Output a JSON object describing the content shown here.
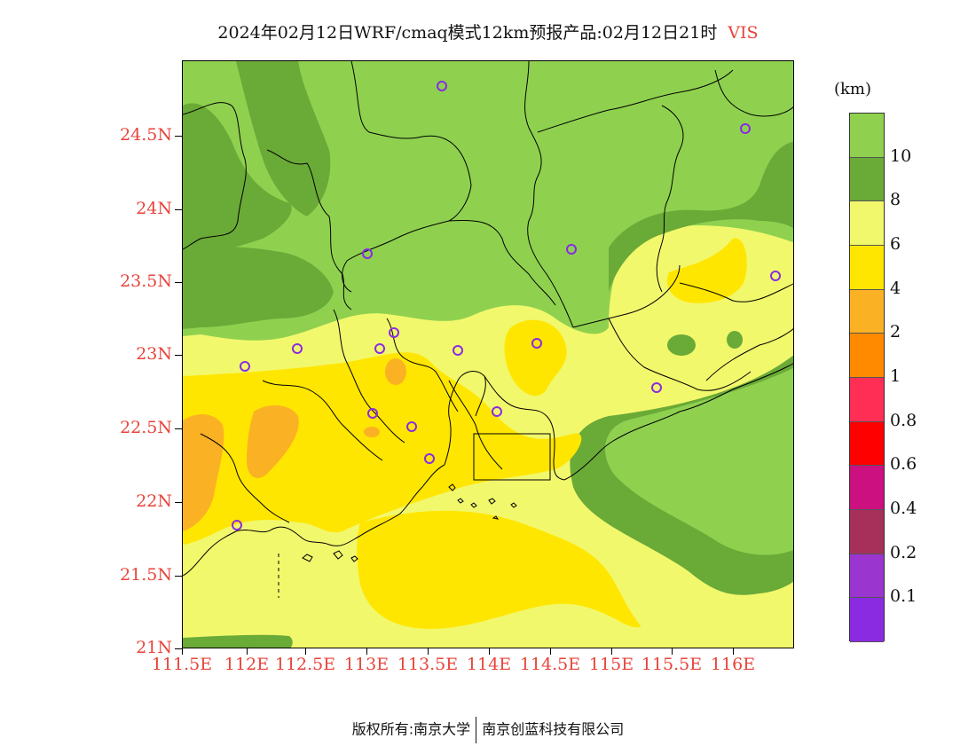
{
  "header": {
    "title": "2024年02月12日WRF/cmaq模式12km预报产品:02月12日21时",
    "variable": "VIS"
  },
  "map": {
    "lat_labels": [
      "24.5N",
      "24N",
      "23.5N",
      "23N",
      "22.5N",
      "22N",
      "21.5N",
      "21N"
    ],
    "lon_labels": [
      "111.5E",
      "112E",
      "112.5E",
      "113E",
      "113.5E",
      "114E",
      "114.5E",
      "115E",
      "115.5E",
      "116E"
    ]
  },
  "legend": {
    "unit": "(km)",
    "labels": [
      "10",
      "8",
      "6",
      "4",
      "2",
      "1",
      "0.8",
      "0.6",
      "0.4",
      "0.2",
      "0.1"
    ],
    "colors": [
      "#8fd14f",
      "#6aaa37",
      "#f2f86c",
      "#ffe600",
      "#fbb124",
      "#ff8a00",
      "#ff2e55",
      "#ff0000",
      "#cc1080",
      "#a6305a",
      "#9a35d0",
      "#8a2be2"
    ]
  },
  "footer": {
    "copyright": "版权所有:南京大学",
    "company": "南京创蓝科技有限公司"
  }
}
